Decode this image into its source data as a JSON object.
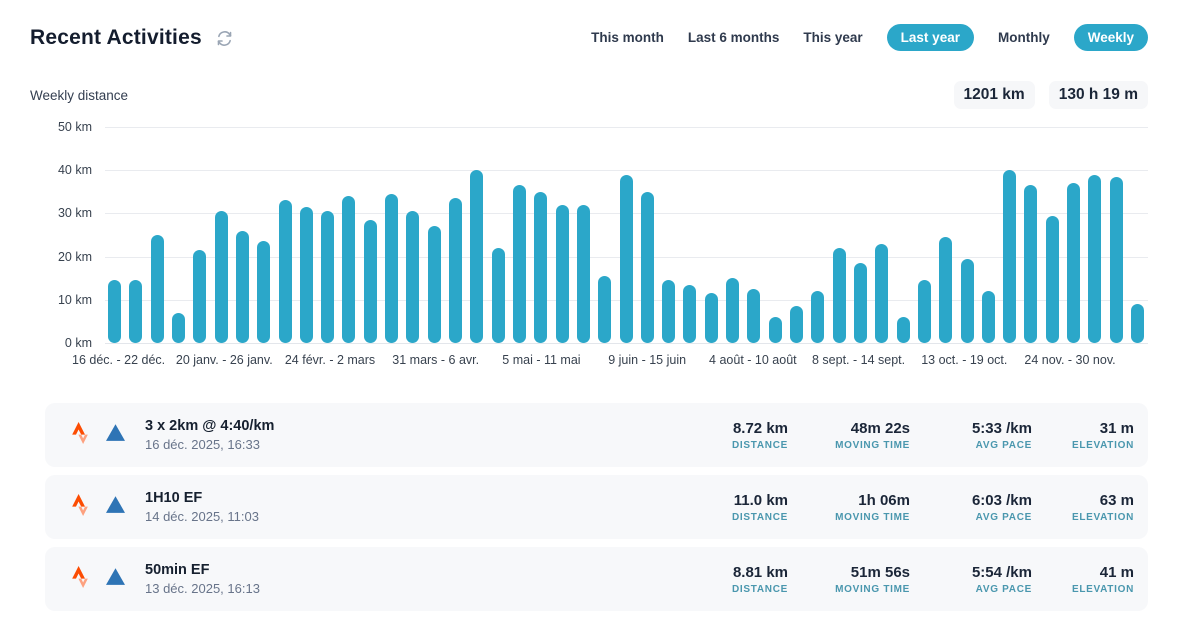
{
  "header": {
    "title": "Recent Activities",
    "filters": [
      {
        "label": "This month",
        "active": false
      },
      {
        "label": "Last 6 months",
        "active": false
      },
      {
        "label": "This year",
        "active": false
      },
      {
        "label": "Last year",
        "active": true
      },
      {
        "label": "Monthly",
        "active": false
      },
      {
        "label": "Weekly",
        "active": true
      }
    ]
  },
  "summary": {
    "chart_label": "Weekly distance",
    "total_distance": "1201 km",
    "total_time": "130 h 19 m"
  },
  "chart_data": {
    "type": "bar",
    "title": "Weekly distance",
    "ylabel": "km",
    "ylim": [
      0,
      50
    ],
    "grid": true,
    "bar_color": "#2ba7c9",
    "yticks": [
      {
        "value": 50,
        "label": "50 km"
      },
      {
        "value": 40,
        "label": "40 km"
      },
      {
        "value": 30,
        "label": "30 km"
      },
      {
        "value": 20,
        "label": "20 km"
      },
      {
        "value": 10,
        "label": "10 km"
      },
      {
        "value": 0,
        "label": "0 km"
      }
    ],
    "values": [
      14.5,
      14.5,
      25,
      7,
      21.5,
      30.5,
      26,
      23.5,
      33,
      31.5,
      30.5,
      34,
      28.5,
      34.5,
      30.5,
      27,
      33.5,
      40,
      22,
      36.5,
      35,
      32,
      32,
      15.5,
      39,
      35,
      14.5,
      13.5,
      11.5,
      15,
      12.5,
      6,
      8.5,
      12,
      22,
      18.5,
      23,
      6,
      14.5,
      24.5,
      19.5,
      12,
      40,
      36.5,
      29.5,
      37,
      39,
      38.5,
      9
    ],
    "xticks": [
      {
        "index": 0,
        "label": "16 déc. - 22 déc."
      },
      {
        "index": 5,
        "label": "20 janv. - 26 janv."
      },
      {
        "index": 10,
        "label": "24 févr. - 2 mars"
      },
      {
        "index": 15,
        "label": "31 mars - 6 avr."
      },
      {
        "index": 20,
        "label": "5 mai - 11 mai"
      },
      {
        "index": 25,
        "label": "9 juin - 15 juin"
      },
      {
        "index": 30,
        "label": "4 août - 10 août"
      },
      {
        "index": 35,
        "label": "8 sept. - 14 sept."
      },
      {
        "index": 40,
        "label": "13 oct. - 19 oct."
      },
      {
        "index": 45,
        "label": "24 nov. - 30 nov."
      }
    ]
  },
  "activities": [
    {
      "title": "3 x 2km @ 4:40/km",
      "datetime": "16 déc. 2025, 16:33",
      "stats": [
        {
          "value": "8.72 km",
          "label": "DISTANCE"
        },
        {
          "value": "48m 22s",
          "label": "MOVING TIME"
        },
        {
          "value": "5:33 /km",
          "label": "AVG PACE"
        },
        {
          "value": "31 m",
          "label": "ELEVATION"
        }
      ]
    },
    {
      "title": "1H10 EF",
      "datetime": "14 déc. 2025, 11:03",
      "stats": [
        {
          "value": "11.0 km",
          "label": "DISTANCE"
        },
        {
          "value": "1h 06m",
          "label": "MOVING TIME"
        },
        {
          "value": "6:03 /km",
          "label": "AVG PACE"
        },
        {
          "value": "63 m",
          "label": "ELEVATION"
        }
      ]
    },
    {
      "title": "50min EF",
      "datetime": "13 déc. 2025, 16:13",
      "stats": [
        {
          "value": "8.81 km",
          "label": "DISTANCE"
        },
        {
          "value": "51m 56s",
          "label": "MOVING TIME"
        },
        {
          "value": "5:54 /km",
          "label": "AVG PACE"
        },
        {
          "value": "41 m",
          "label": "ELEVATION"
        }
      ]
    }
  ],
  "colors": {
    "accent_teal": "#2ba7c9",
    "strava_orange": "#fc4c02",
    "strava_light_orange": "#fda17f",
    "triangle_blue": "#2e74b5",
    "stat_label_teal": "#4a97ae",
    "row_background": "#f7f8fa"
  },
  "icons": {
    "refresh": "refresh-icon",
    "strava": "strava-logo-icon",
    "activity_type": "triangle-icon"
  }
}
